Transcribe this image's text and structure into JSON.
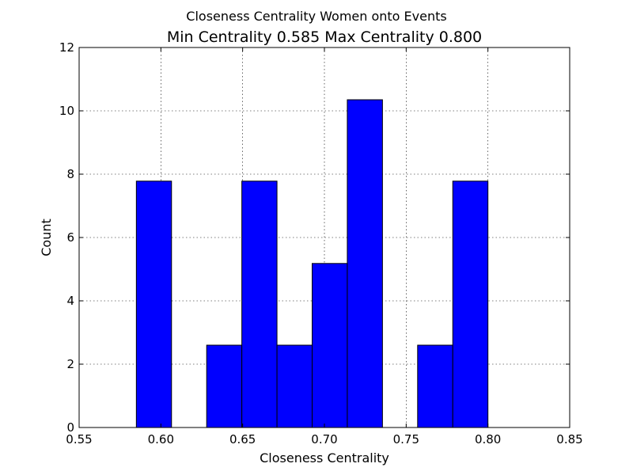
{
  "chart_data": {
    "type": "bar",
    "suptitle": "Closeness Centrality Women onto Events",
    "title": "Min Centrality 0.585 Max Centrality 0.800",
    "xlabel": "Closeness Centrality",
    "ylabel": "Count",
    "xlim": [
      0.55,
      0.85
    ],
    "ylim": [
      0,
      12
    ],
    "xticks": [
      "0.55",
      "0.60",
      "0.65",
      "0.70",
      "0.75",
      "0.80",
      "0.85"
    ],
    "yticks": [
      "0",
      "2",
      "4",
      "6",
      "8",
      "10",
      "12"
    ],
    "grid": true,
    "bar_color": "#0000ff",
    "bins": [
      {
        "x0": 0.585,
        "x1": 0.6065,
        "value": 7.78
      },
      {
        "x0": 0.6065,
        "x1": 0.628,
        "value": 0
      },
      {
        "x0": 0.628,
        "x1": 0.6495,
        "value": 2.6
      },
      {
        "x0": 0.6495,
        "x1": 0.671,
        "value": 7.78
      },
      {
        "x0": 0.671,
        "x1": 0.6925,
        "value": 2.6
      },
      {
        "x0": 0.6925,
        "x1": 0.714,
        "value": 5.18
      },
      {
        "x0": 0.714,
        "x1": 0.7355,
        "value": 10.35
      },
      {
        "x0": 0.7355,
        "x1": 0.757,
        "value": 0
      },
      {
        "x0": 0.757,
        "x1": 0.7785,
        "value": 2.6
      },
      {
        "x0": 0.7785,
        "x1": 0.8,
        "value": 7.78
      }
    ]
  }
}
